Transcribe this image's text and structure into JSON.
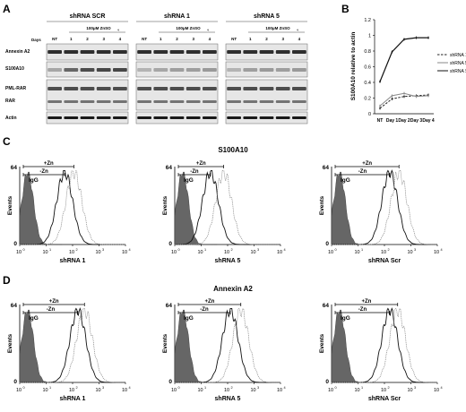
{
  "panel_a": {
    "letter": "A",
    "days_label": "Days",
    "groups": [
      {
        "title": "shRNA SCR",
        "treatment": "100μM ZnSO",
        "sub": "4",
        "lanes": [
          "NT",
          "1",
          "2",
          "3",
          "4"
        ]
      },
      {
        "title": "shRNA 1",
        "treatment": "100μM ZnSO",
        "sub": "4",
        "lanes": [
          "NT",
          "1",
          "2",
          "3",
          "4"
        ]
      },
      {
        "title": "shRNA 5",
        "treatment": "100μM ZnSO",
        "sub": "4",
        "lanes": [
          "NT",
          "1",
          "2",
          "3",
          "4"
        ]
      }
    ],
    "rows": [
      "Annexin A2",
      "S100A10",
      "PML-RAR",
      "RAR",
      "Actin"
    ]
  },
  "panel_b": {
    "letter": "B",
    "chart_data": {
      "type": "line",
      "categories": [
        "NT",
        "Day 1",
        "Day 2",
        "Day 3",
        "Day 4"
      ],
      "ylabel": "S100A10 relative to actin",
      "ylim": [
        0,
        1.2
      ],
      "yticks": [
        "0",
        "0.2",
        "0.4",
        "0.6",
        "0.8",
        "1",
        "1.2"
      ],
      "legend_position": "right",
      "series": [
        {
          "name": "shRNA 1",
          "values": [
            0.07,
            0.19,
            0.22,
            0.23,
            0.24
          ],
          "style": "dashed",
          "color": "#222222"
        },
        {
          "name": "shRNA 5",
          "values": [
            0.1,
            0.23,
            0.26,
            0.22,
            0.23
          ],
          "style": "solid",
          "color": "#8a8a8a"
        },
        {
          "name": "shRNA Scr",
          "values": [
            0.41,
            0.79,
            0.95,
            0.97,
            0.97
          ],
          "style": "solid",
          "color": "#111111"
        }
      ]
    }
  },
  "panel_c": {
    "letter": "C",
    "title": "S100A10",
    "ylabel": "Events",
    "ymax": "64",
    "ymin": "0",
    "xticks": [
      "10",
      "10",
      "10",
      "10",
      "10"
    ],
    "xexp": [
      "0",
      "1",
      "2",
      "3",
      "4"
    ],
    "bracket_plus": "+Zn",
    "bracket_minus": "-Zn",
    "igg": "IgG",
    "plots": [
      {
        "xlabel": "shRNA 1",
        "peak_minus": 1.7,
        "peak_plus": 2.05
      },
      {
        "xlabel": "shRNA 5",
        "peak_minus": 1.35,
        "peak_plus": 1.85
      },
      {
        "xlabel": "shRNA Scr",
        "peak_minus": 2.2,
        "peak_plus": 2.55
      }
    ]
  },
  "panel_d": {
    "letter": "D",
    "title": "Annexin A2",
    "ylabel": "Events",
    "ymax": "64",
    "ymin": "0",
    "xticks": [
      "10",
      "10",
      "10",
      "10",
      "10"
    ],
    "xexp": [
      "0",
      "1",
      "2",
      "3",
      "4"
    ],
    "bracket_plus": "+Zn",
    "bracket_minus": "-Zn",
    "igg": "IgG",
    "plots": [
      {
        "xlabel": "shRNA 1",
        "peak_minus": 2.2,
        "peak_plus": 2.45
      },
      {
        "xlabel": "shRNA 5",
        "peak_minus": 2.1,
        "peak_plus": 2.5
      },
      {
        "xlabel": "shRNA Scr",
        "peak_minus": 2.2,
        "peak_plus": 2.5
      }
    ]
  }
}
